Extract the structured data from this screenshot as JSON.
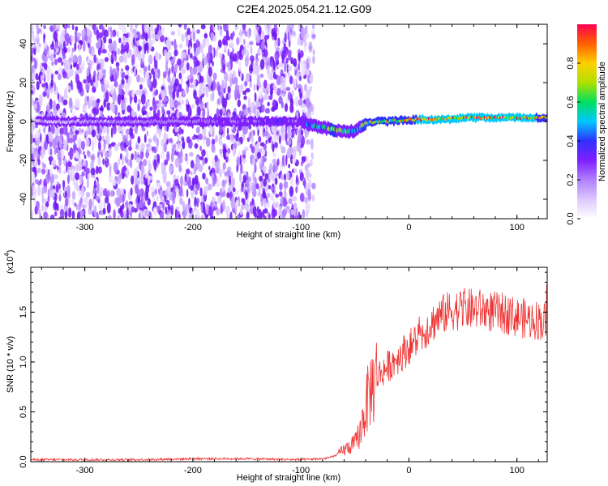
{
  "title": "C2E4.2025.054.21.12.G09",
  "chart_data": [
    {
      "type": "heatmap",
      "xlabel": "Height of straight line (km)",
      "ylabel": "Frequency (Hz)",
      "xlim": [
        -350,
        128
      ],
      "ylim": [
        -50,
        50
      ],
      "xticks": [
        -300,
        -200,
        -100,
        0,
        100
      ],
      "yticks": [
        -40,
        -20,
        0,
        20,
        40
      ],
      "colorbar": {
        "label": "Normalized spectral amplitude",
        "range": [
          0,
          1
        ],
        "ticks": [
          0.0,
          0.2,
          0.4,
          0.6,
          0.8
        ],
        "colors": [
          "#ffffff",
          "#dcc8ff",
          "#b080ff",
          "#8020ff",
          "#3030ff",
          "#00c8ff",
          "#00e060",
          "#b0e000",
          "#ffd000",
          "#ff6000",
          "#ff0050"
        ]
      },
      "noise_region": {
        "x_from": -350,
        "x_to": -88,
        "freq_range": [
          -50,
          50
        ]
      },
      "ridge": {
        "x": [
          -320,
          -250,
          -200,
          -150,
          -125,
          -100,
          -90,
          -80,
          -70,
          -60,
          -50,
          -45,
          -40,
          -30,
          -20,
          0,
          20,
          40,
          60,
          80,
          100,
          128
        ],
        "frequency": [
          0,
          0,
          0,
          0,
          0,
          0,
          -2,
          -3,
          -4,
          -5,
          -5,
          -3,
          -1,
          0,
          0,
          1,
          1,
          1.5,
          2,
          2,
          2,
          2
        ],
        "amplitude": [
          0.15,
          0.2,
          0.22,
          0.3,
          0.35,
          0.25,
          0.5,
          0.6,
          0.65,
          0.6,
          0.5,
          0.6,
          0.7,
          0.7,
          0.75,
          0.8,
          0.85,
          0.85,
          0.85,
          0.85,
          0.85,
          0.8
        ]
      }
    },
    {
      "type": "line",
      "xlabel": "Height of straight line (km)",
      "ylabel": "SNR (10 * v/v)",
      "yscale_label": "(x10",
      "yscale_exp": "4",
      "yscale_close": ")",
      "xlim": [
        -350,
        128
      ],
      "ylim": [
        0,
        1.95
      ],
      "xticks": [
        -300,
        -200,
        -100,
        0,
        100
      ],
      "yticks": [
        "0.0",
        "0.5",
        "1.0",
        "1.5"
      ],
      "color": "#ee3333",
      "series": [
        {
          "x": [
            -350,
            -300,
            -250,
            -200,
            -150,
            -100,
            -80,
            -70,
            -60,
            -50,
            -45,
            -40,
            -35,
            -30,
            -25,
            -20,
            -15,
            -10,
            -5,
            0,
            10,
            20,
            30,
            40,
            50,
            60,
            70,
            80,
            90,
            100,
            110,
            120,
            128
          ],
          "values": [
            0.02,
            0.02,
            0.02,
            0.03,
            0.03,
            0.02,
            0.03,
            0.05,
            0.12,
            0.18,
            0.3,
            0.55,
            0.75,
            0.85,
            0.9,
            0.95,
            1.0,
            1.05,
            1.1,
            1.15,
            1.25,
            1.38,
            1.47,
            1.52,
            1.53,
            1.53,
            1.52,
            1.5,
            1.48,
            1.45,
            1.43,
            1.42,
            1.4
          ]
        }
      ]
    }
  ]
}
